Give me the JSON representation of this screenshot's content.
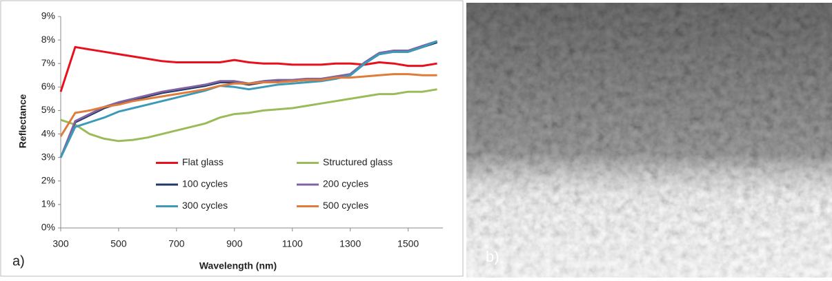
{
  "panel_labels": [
    "a)",
    "b)"
  ],
  "chart_data": {
    "type": "line",
    "x_label": "Wavelength (nm)",
    "y_label": "Reflectance",
    "x": [
      300,
      350,
      400,
      450,
      500,
      550,
      600,
      650,
      700,
      750,
      800,
      850,
      900,
      950,
      1000,
      1050,
      1100,
      1150,
      1200,
      1250,
      1300,
      1350,
      1400,
      1450,
      1500,
      1550,
      1600
    ],
    "xlim": [
      300,
      1620
    ],
    "xticks": [
      300,
      500,
      700,
      900,
      1100,
      1300,
      1500
    ],
    "ylim": [
      0,
      9
    ],
    "yticks": [
      {
        "value": 0,
        "label": "0%"
      },
      {
        "value": 1,
        "label": "1%"
      },
      {
        "value": 2,
        "label": "2%"
      },
      {
        "value": 3,
        "label": "3%"
      },
      {
        "value": 4,
        "label": "4%"
      },
      {
        "value": 5,
        "label": "5%"
      },
      {
        "value": 6,
        "label": "6%"
      },
      {
        "value": 7,
        "label": "7%"
      },
      {
        "value": 8,
        "label": "8%"
      },
      {
        "value": 9,
        "label": "9%"
      }
    ],
    "grid": false,
    "legend": "lower center",
    "series": [
      {
        "name": "Flat glass",
        "color": "#e8101c",
        "values": [
          5.8,
          7.7,
          7.6,
          7.5,
          7.4,
          7.3,
          7.2,
          7.1,
          7.05,
          7.05,
          7.05,
          7.05,
          7.15,
          7.05,
          7.0,
          7.0,
          6.95,
          6.95,
          6.95,
          7.0,
          7.0,
          6.95,
          7.05,
          7.0,
          6.9,
          6.9,
          7.0
        ]
      },
      {
        "name": "Structured glass",
        "color": "#9bbb59",
        "values": [
          4.6,
          4.4,
          4.0,
          3.8,
          3.7,
          3.75,
          3.85,
          4.0,
          4.15,
          4.3,
          4.45,
          4.7,
          4.85,
          4.9,
          5.0,
          5.05,
          5.1,
          5.2,
          5.3,
          5.4,
          5.5,
          5.6,
          5.7,
          5.7,
          5.8,
          5.8,
          5.9
        ]
      },
      {
        "name": "100 cycles",
        "color": "#1f3864",
        "values": [
          3.0,
          4.5,
          4.8,
          5.1,
          5.3,
          5.45,
          5.6,
          5.75,
          5.85,
          5.95,
          6.05,
          6.2,
          6.2,
          6.1,
          6.2,
          6.25,
          6.25,
          6.3,
          6.3,
          6.4,
          6.5,
          7.0,
          7.4,
          7.5,
          7.5,
          7.7,
          7.9
        ]
      },
      {
        "name": "200 cycles",
        "color": "#8064a2",
        "values": [
          3.0,
          4.55,
          4.85,
          5.15,
          5.35,
          5.5,
          5.65,
          5.8,
          5.9,
          6.0,
          6.1,
          6.25,
          6.25,
          6.15,
          6.25,
          6.3,
          6.3,
          6.35,
          6.35,
          6.45,
          6.55,
          7.05,
          7.45,
          7.55,
          7.55,
          7.75,
          7.95
        ]
      },
      {
        "name": "300 cycles",
        "color": "#3c9ab8",
        "values": [
          3.0,
          4.3,
          4.5,
          4.7,
          4.95,
          5.1,
          5.25,
          5.4,
          5.55,
          5.7,
          5.85,
          6.05,
          6.0,
          5.9,
          6.0,
          6.1,
          6.15,
          6.2,
          6.25,
          6.35,
          6.5,
          7.0,
          7.4,
          7.5,
          7.5,
          7.7,
          7.95
        ]
      },
      {
        "name": "500 cycles",
        "color": "#e07b39",
        "values": [
          3.9,
          4.9,
          5.0,
          5.15,
          5.25,
          5.4,
          5.5,
          5.6,
          5.7,
          5.8,
          5.9,
          6.05,
          6.15,
          6.15,
          6.2,
          6.2,
          6.25,
          6.3,
          6.3,
          6.4,
          6.4,
          6.45,
          6.5,
          6.55,
          6.55,
          6.5,
          6.5
        ]
      }
    ]
  }
}
